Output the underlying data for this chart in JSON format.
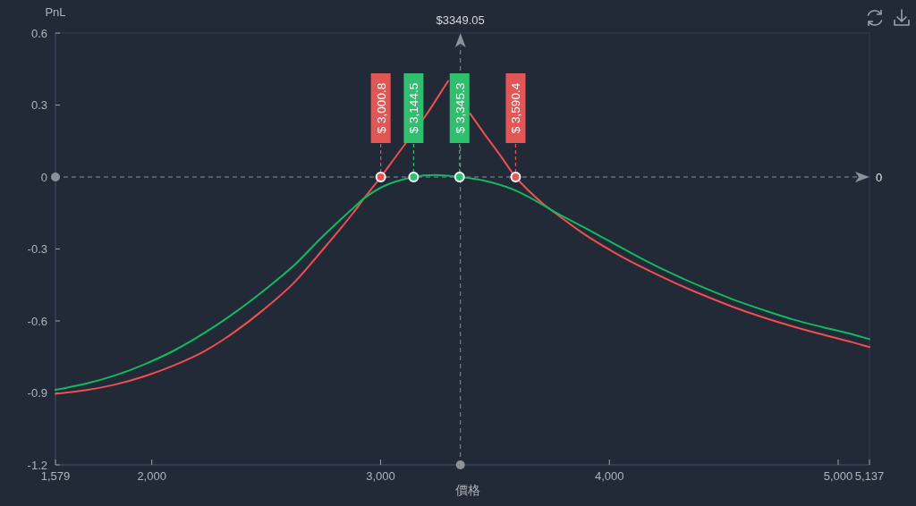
{
  "chart_data": {
    "type": "line",
    "xlabel": "價格",
    "ylabel": "PnL",
    "xlim": [
      1579,
      5137
    ],
    "ylim": [
      -1.2,
      0.6
    ],
    "xticks": [
      {
        "value": 1579,
        "label": "1,579"
      },
      {
        "value": 2000,
        "label": "2,000"
      },
      {
        "value": 3000,
        "label": "3,000"
      },
      {
        "value": 4000,
        "label": "4,000"
      },
      {
        "value": 5000,
        "label": "5,000"
      },
      {
        "value": 5137,
        "label": "5,137"
      }
    ],
    "yticks": [
      0.6,
      0.3,
      0,
      -0.3,
      -0.6,
      -0.9,
      -1.2
    ],
    "line_style": "solid",
    "series": [
      {
        "color": "#ef4f4f",
        "x": [
          1579,
          1710,
          1840,
          1970,
          2100,
          2230,
          2360,
          2490,
          2620,
          2750,
          2880,
          2927,
          3000.8,
          3055,
          3200,
          3295,
          3345.3,
          3391,
          3450,
          3524,
          3590.4,
          3708,
          3760,
          3890,
          4021,
          4151,
          4281,
          4412,
          4542,
          4672,
          4803,
          4933,
          5063,
          5137
        ],
        "values": [
          -0.904,
          -0.889,
          -0.865,
          -0.83,
          -0.784,
          -0.726,
          -0.647,
          -0.552,
          -0.442,
          -0.3,
          -0.15,
          -0.09,
          0,
          0.07,
          0.26,
          0.4,
          null,
          0.265,
          0.185,
          0.089,
          0,
          -0.11,
          -0.148,
          -0.238,
          -0.314,
          -0.38,
          -0.439,
          -0.493,
          -0.542,
          -0.585,
          -0.623,
          -0.657,
          -0.689,
          -0.709
        ]
      },
      {
        "color": "#14b862",
        "x": [
          1579,
          1710,
          1840,
          1970,
          2100,
          2230,
          2360,
          2490,
          2620,
          2750,
          2880,
          2927,
          3010,
          3144.5,
          3240,
          3345.3,
          3447,
          3577,
          3708,
          3760,
          3890,
          4021,
          4151,
          4281,
          4412,
          4542,
          4672,
          4803,
          4933,
          5063,
          5137
        ],
        "values": [
          -0.887,
          -0.862,
          -0.827,
          -0.78,
          -0.722,
          -0.65,
          -0.567,
          -0.473,
          -0.37,
          -0.245,
          -0.13,
          -0.09,
          -0.04,
          0,
          0.008,
          0,
          -0.014,
          -0.051,
          -0.115,
          -0.145,
          -0.21,
          -0.278,
          -0.345,
          -0.406,
          -0.461,
          -0.511,
          -0.554,
          -0.594,
          -0.626,
          -0.656,
          -0.676
        ]
      },
      {
        "type": "scatter",
        "marker": "circle",
        "color": "#e35656",
        "x": [
          3000.8,
          3590.4
        ],
        "values": [
          0,
          0
        ]
      },
      {
        "type": "scatter",
        "marker": "circle",
        "color": "#2fbf6e",
        "x": [
          3144.5,
          3345.3
        ],
        "values": [
          0,
          0
        ]
      }
    ],
    "annotations": [
      {
        "text": "$ 3,000.8",
        "x": 3000.8,
        "y": 0
      },
      {
        "text": "$ 3,144.5",
        "x": 3144.5,
        "y": 0
      },
      {
        "text": "$ 3,345.3",
        "x": 3345.3,
        "y": 0
      },
      {
        "text": "$ 3,590.4",
        "x": 3590.4,
        "y": 0
      }
    ],
    "ref_lines": [
      {
        "axis": "x",
        "value": 3349.05,
        "label": "$3349.05",
        "color": "#8b9099",
        "line_style": "dashed"
      },
      {
        "axis": "y",
        "value": 0,
        "label": "0",
        "color": "#8b9099",
        "line_style": "dashed"
      }
    ]
  }
}
